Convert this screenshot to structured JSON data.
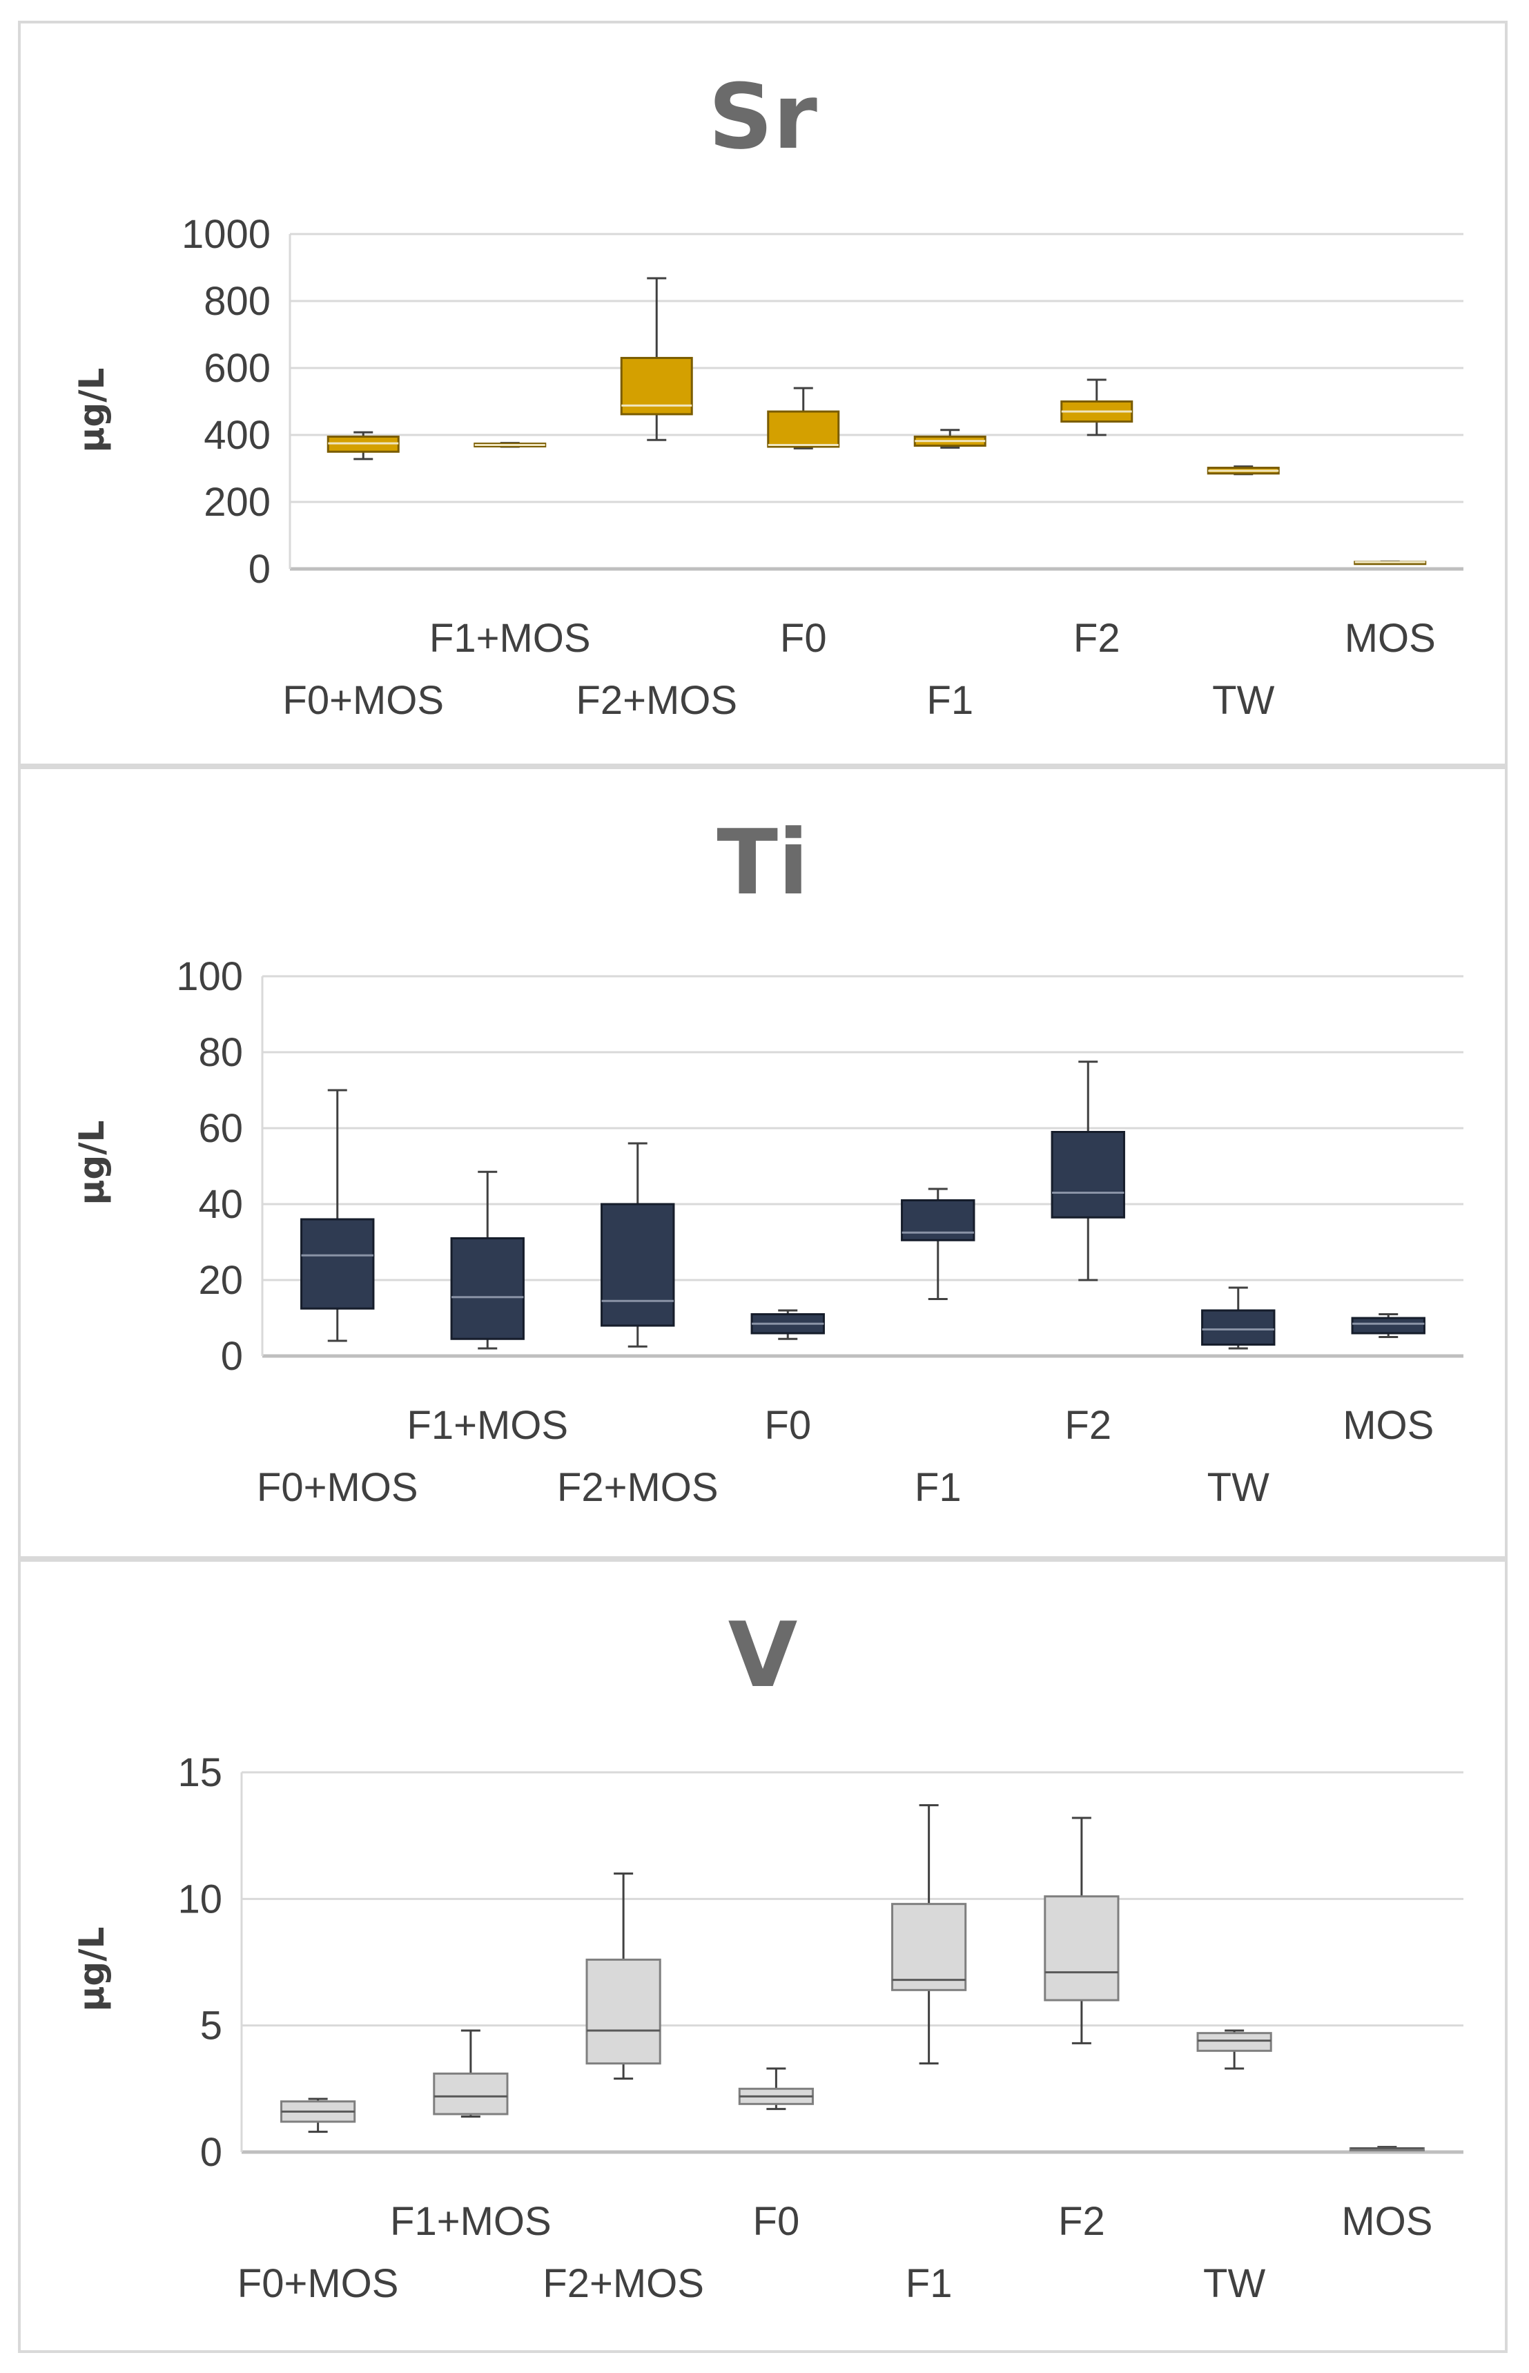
{
  "chart_data": [
    {
      "type": "box",
      "title": "Sr",
      "ylabel": "µg/L",
      "xlabel": "",
      "ylim": [
        0,
        1000
      ],
      "yticks": [
        "0",
        "200",
        "400",
        "600",
        "800",
        "1000"
      ],
      "grid": true,
      "categories": [
        "F0+MOS",
        "F1+MOS",
        "F2+MOS",
        "F0",
        "F1",
        "F2",
        "TW",
        "MOS"
      ],
      "fill": "#d4a000",
      "stroke": "#7a5c00",
      "boxes": [
        {
          "min": 328,
          "q1": 350,
          "median": 375,
          "q3": 395,
          "max": 408
        },
        {
          "min": 365,
          "q1": 366,
          "median": 370,
          "q3": 374,
          "max": 376
        },
        {
          "min": 385,
          "q1": 462,
          "median": 488,
          "q3": 630,
          "max": 868
        },
        {
          "min": 360,
          "q1": 365,
          "median": 370,
          "q3": 470,
          "max": 540
        },
        {
          "min": 362,
          "q1": 368,
          "median": 382,
          "q3": 395,
          "max": 415
        },
        {
          "min": 400,
          "q1": 440,
          "median": 470,
          "q3": 500,
          "max": 565
        },
        {
          "min": 283,
          "q1": 285,
          "median": 293,
          "q3": 302,
          "max": 306
        },
        {
          "min": 18,
          "q1": 19,
          "median": 20,
          "q3": 21,
          "max": 22
        }
      ]
    },
    {
      "type": "box",
      "title": "Ti",
      "ylabel": "µg/L",
      "xlabel": "",
      "ylim": [
        0,
        100
      ],
      "yticks": [
        "0",
        "20",
        "40",
        "60",
        "80",
        "100"
      ],
      "grid": true,
      "categories": [
        "F0+MOS",
        "F1+MOS",
        "F2+MOS",
        "F0",
        "F1",
        "F2",
        "TW",
        "MOS"
      ],
      "fill": "#2f3b52",
      "stroke": "#161d2b",
      "boxes": [
        {
          "min": 4,
          "q1": 12.5,
          "median": 26.5,
          "q3": 36,
          "max": 70
        },
        {
          "min": 2,
          "q1": 4.5,
          "median": 15.5,
          "q3": 31,
          "max": 48.5
        },
        {
          "min": 2.5,
          "q1": 8,
          "median": 14.5,
          "q3": 40,
          "max": 56
        },
        {
          "min": 4.5,
          "q1": 6,
          "median": 8.5,
          "q3": 11,
          "max": 12
        },
        {
          "min": 15,
          "q1": 30.5,
          "median": 32.5,
          "q3": 41,
          "max": 44
        },
        {
          "min": 20,
          "q1": 36.5,
          "median": 43,
          "q3": 59,
          "max": 77.5
        },
        {
          "min": 2,
          "q1": 3,
          "median": 7,
          "q3": 12,
          "max": 18
        },
        {
          "min": 5,
          "q1": 6,
          "median": 8.5,
          "q3": 10,
          "max": 11
        }
      ]
    },
    {
      "type": "box",
      "title": "V",
      "ylabel": "µg/L",
      "xlabel": "",
      "ylim": [
        0,
        15
      ],
      "yticks": [
        "0",
        "5",
        "10",
        "15"
      ],
      "grid": true,
      "categories": [
        "F0+MOS",
        "F1+MOS",
        "F2+MOS",
        "F0",
        "F1",
        "F2",
        "TW",
        "MOS"
      ],
      "fill": "#d9d9d9",
      "stroke": "#7f7f7f",
      "boxes": [
        {
          "min": 0.8,
          "q1": 1.2,
          "median": 1.6,
          "q3": 2.0,
          "max": 2.1
        },
        {
          "min": 1.4,
          "q1": 1.5,
          "median": 2.2,
          "q3": 3.1,
          "max": 4.8
        },
        {
          "min": 2.9,
          "q1": 3.5,
          "median": 4.8,
          "q3": 7.6,
          "max": 11.0
        },
        {
          "min": 1.7,
          "q1": 1.9,
          "median": 2.2,
          "q3": 2.5,
          "max": 3.3
        },
        {
          "min": 3.5,
          "q1": 6.4,
          "median": 6.8,
          "q3": 9.8,
          "max": 13.7
        },
        {
          "min": 4.3,
          "q1": 6.0,
          "median": 7.1,
          "q3": 10.1,
          "max": 13.2
        },
        {
          "min": 3.3,
          "q1": 4.0,
          "median": 4.4,
          "q3": 4.7,
          "max": 4.8
        },
        {
          "min": 0.1,
          "q1": 0.1,
          "median": 0.15,
          "q3": 0.15,
          "max": 0.2
        }
      ]
    }
  ]
}
